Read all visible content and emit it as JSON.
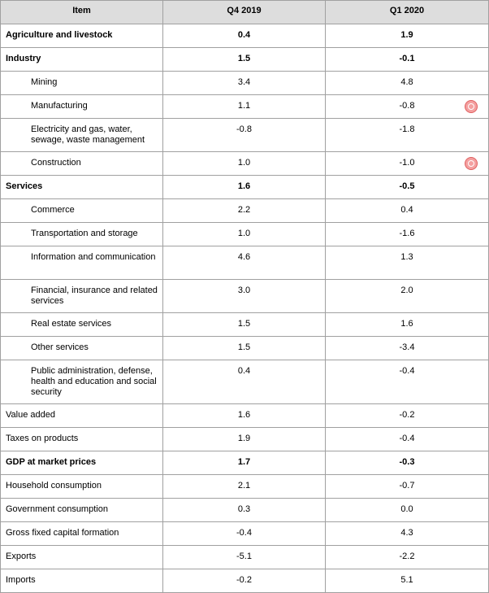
{
  "table": {
    "headers": {
      "item": "Item",
      "q4": "Q4 2019",
      "q1": "Q1 2020"
    },
    "rows": [
      {
        "item": "Agriculture and livestock",
        "q4": "0.4",
        "q1": "1.9"
      },
      {
        "item": "Industry",
        "q4": "1.5",
        "q1": "-0.1"
      },
      {
        "item": "Mining",
        "q4": "3.4",
        "q1": "4.8"
      },
      {
        "item": "Manufacturing",
        "q4": "1.1",
        "q1": "-0.8"
      },
      {
        "item": "Electricity and gas, water, sewage, waste management",
        "q4": "-0.8",
        "q1": "-1.8"
      },
      {
        "item": "Construction",
        "q4": "1.0",
        "q1": "-1.0"
      },
      {
        "item": "Services",
        "q4": "1.6",
        "q1": "-0.5"
      },
      {
        "item": "Commerce",
        "q4": "2.2",
        "q1": "0.4"
      },
      {
        "item": "Transportation and storage",
        "q4": "1.0",
        "q1": "-1.6"
      },
      {
        "item": "Information and communication",
        "q4": "4.6",
        "q1": "1.3"
      },
      {
        "item": "Financial, insurance and related services",
        "q4": "3.0",
        "q1": "2.0"
      },
      {
        "item": "Real estate services",
        "q4": "1.5",
        "q1": "1.6"
      },
      {
        "item": "Other services",
        "q4": "1.5",
        "q1": "-3.4"
      },
      {
        "item": "Public administration, defense, health and education and social security",
        "q4": "0.4",
        "q1": "-0.4"
      },
      {
        "item": "Value added",
        "q4": "1.6",
        "q1": "-0.2"
      },
      {
        "item": "Taxes on products",
        "q4": "1.9",
        "q1": "-0.4"
      },
      {
        "item": "GDP at market prices",
        "q4": "1.7",
        "q1": "-0.3"
      },
      {
        "item": "Household consumption",
        "q4": "2.1",
        "q1": "-0.7"
      },
      {
        "item": "Government consumption",
        "q4": "0.3",
        "q1": "0.0"
      },
      {
        "item": "Gross fixed capital formation",
        "q4": "-0.4",
        "q1": "4.3"
      },
      {
        "item": "Exports",
        "q4": "-5.1",
        "q1": "-2.2"
      },
      {
        "item": "Imports",
        "q4": "-0.2",
        "q1": "5.1"
      }
    ]
  },
  "seal_icon": "seal-icon",
  "seal_color": "#f4a0a0"
}
